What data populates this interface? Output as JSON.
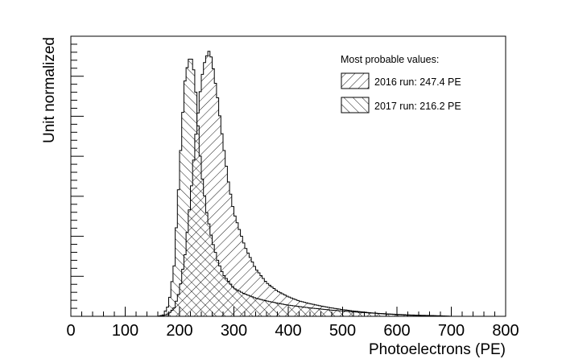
{
  "chart_data": {
    "type": "histogram",
    "title": "",
    "xlabel": "Photoelectrons (PE)",
    "ylabel": "Unit normalized",
    "xlim": [
      0,
      800
    ],
    "ylim": [
      0,
      1.0
    ],
    "x_ticks": [
      "0",
      "100",
      "200",
      "300",
      "400",
      "500",
      "600",
      "700",
      "800"
    ],
    "legend": {
      "title": "Most probable values:",
      "placement": "top-right"
    },
    "series": [
      {
        "name": "2016 run: 247.4 PE",
        "hatch": "diagonal-down",
        "x": [
          160,
          170,
          180,
          190,
          200,
          210,
          220,
          230,
          240,
          245,
          250,
          255,
          260,
          270,
          280,
          290,
          300,
          320,
          340,
          360,
          380,
          400,
          420,
          440,
          460,
          480,
          500,
          520,
          540,
          560,
          580,
          600,
          620,
          640,
          660,
          680,
          700
        ],
        "values": [
          0,
          0.002,
          0.01,
          0.03,
          0.09,
          0.22,
          0.42,
          0.65,
          0.84,
          0.9,
          0.93,
          0.95,
          0.91,
          0.78,
          0.62,
          0.48,
          0.37,
          0.25,
          0.17,
          0.12,
          0.09,
          0.07,
          0.055,
          0.045,
          0.037,
          0.03,
          0.024,
          0.019,
          0.015,
          0.011,
          0.008,
          0.006,
          0.004,
          0.003,
          0.002,
          0.001,
          0
        ]
      },
      {
        "name": "2017 run: 216.2 PE",
        "hatch": "diagonal-up",
        "x": [
          160,
          170,
          180,
          190,
          200,
          205,
          210,
          215,
          220,
          225,
          230,
          235,
          240,
          250,
          260,
          270,
          280,
          300,
          320,
          340,
          360,
          380,
          400,
          420,
          440,
          460,
          480,
          500,
          520,
          540,
          560,
          580,
          600,
          620,
          640,
          660,
          680,
          700
        ],
        "values": [
          0,
          0.005,
          0.04,
          0.18,
          0.52,
          0.7,
          0.84,
          0.9,
          0.93,
          0.9,
          0.8,
          0.65,
          0.52,
          0.37,
          0.27,
          0.2,
          0.15,
          0.1,
          0.08,
          0.065,
          0.055,
          0.047,
          0.04,
          0.035,
          0.03,
          0.026,
          0.022,
          0.019,
          0.016,
          0.013,
          0.011,
          0.009,
          0.007,
          0.005,
          0.004,
          0.003,
          0.002,
          0
        ]
      }
    ]
  }
}
